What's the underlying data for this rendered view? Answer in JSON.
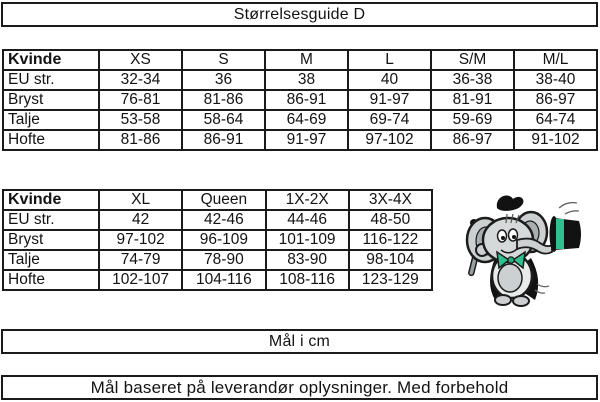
{
  "title": "Størrelsesguide D",
  "footer": {
    "units_label": "Mål i cm",
    "disclaimer": "Mål baseret på leverandør oplysninger. Med forbehold"
  },
  "size_table_small": {
    "header": [
      "Kvinde",
      "XS",
      "S",
      "M",
      "L",
      "S/M",
      "M/L"
    ],
    "rows": [
      [
        "EU str.",
        "32-34",
        "36",
        "38",
        "40",
        "36-38",
        "38-40"
      ],
      [
        "Bryst",
        "76-81",
        "81-86",
        "86-91",
        "91-97",
        "81-91",
        "86-97"
      ],
      [
        "Talje",
        "53-58",
        "58-64",
        "64-69",
        "69-74",
        "59-69",
        "64-74"
      ],
      [
        "Hofte",
        "81-86",
        "86-91",
        "91-97",
        "97-102",
        "86-97",
        "91-102"
      ]
    ]
  },
  "size_table_large": {
    "header": [
      "Kvinde",
      "XL",
      "Queen",
      "1X-2X",
      "3X-4X"
    ],
    "rows": [
      [
        "EU str.",
        "42",
        "42-46",
        "44-46",
        "48-50"
      ],
      [
        "Bryst",
        "97-102",
        "96-109",
        "101-109",
        "116-122"
      ],
      [
        "Talje",
        "74-79",
        "78-90",
        "83-90",
        "98-104"
      ],
      [
        "Hofte",
        "102-107",
        "104-116",
        "108-116",
        "123-129"
      ]
    ]
  },
  "mascot": {
    "icon": "elephant-tuxedo-tophat-mascot",
    "colors": {
      "body": "#ccd0d1",
      "shade": "#a9afb1",
      "accent": "#2fc08e",
      "outline": "#1c1c1c",
      "black": "#121212"
    }
  }
}
